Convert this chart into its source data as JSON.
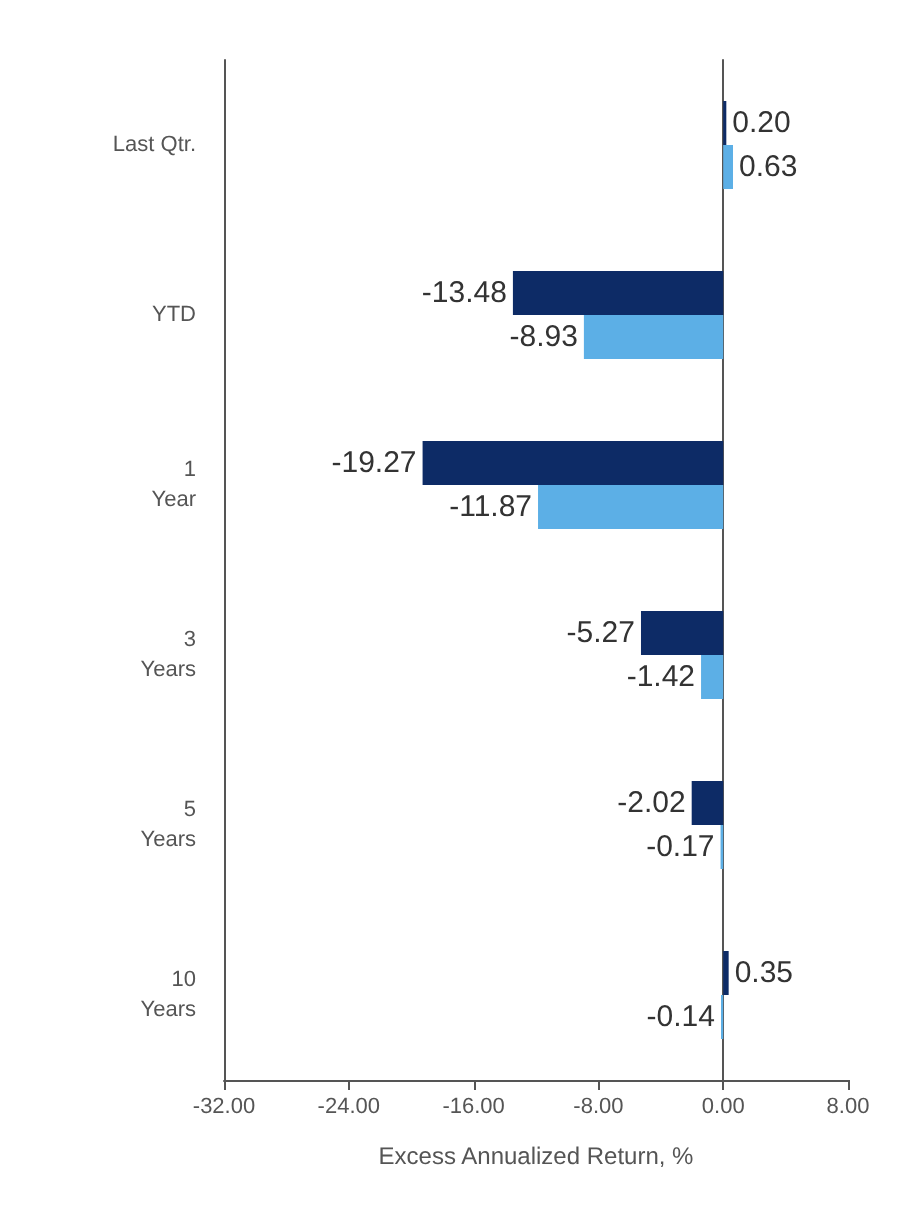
{
  "chart_data": {
    "type": "bar",
    "orientation": "horizontal",
    "xlabel": "Excess Annualized Return, %",
    "categories": [
      "Last Qtr.",
      "YTD",
      "1\nYear",
      "3\nYears",
      "5\nYears",
      "10\nYears"
    ],
    "series": [
      {
        "color": "#0d2b66",
        "values": [
          0.2,
          -13.48,
          -19.27,
          -5.27,
          -2.02,
          0.35
        ],
        "value_labels": [
          "0.20",
          "-13.48",
          "-19.27",
          "-5.27",
          "-2.02",
          "0.35"
        ]
      },
      {
        "color": "#5cafe6",
        "values": [
          0.63,
          -8.93,
          -11.87,
          -1.42,
          -0.17,
          -0.14
        ],
        "value_labels": [
          "0.63",
          "-8.93",
          "-11.87",
          "-1.42",
          "-0.17",
          "-0.14"
        ]
      }
    ],
    "xlim": [
      -32,
      8
    ],
    "xticks": [
      {
        "value": -32,
        "label": "-32.00"
      },
      {
        "value": -24,
        "label": "-24.00"
      },
      {
        "value": -16,
        "label": "-16.00"
      },
      {
        "value": -8,
        "label": "-8.00"
      },
      {
        "value": 0,
        "label": "0.00"
      },
      {
        "value": 8,
        "label": "8.00"
      }
    ],
    "tick_labels": true
  }
}
